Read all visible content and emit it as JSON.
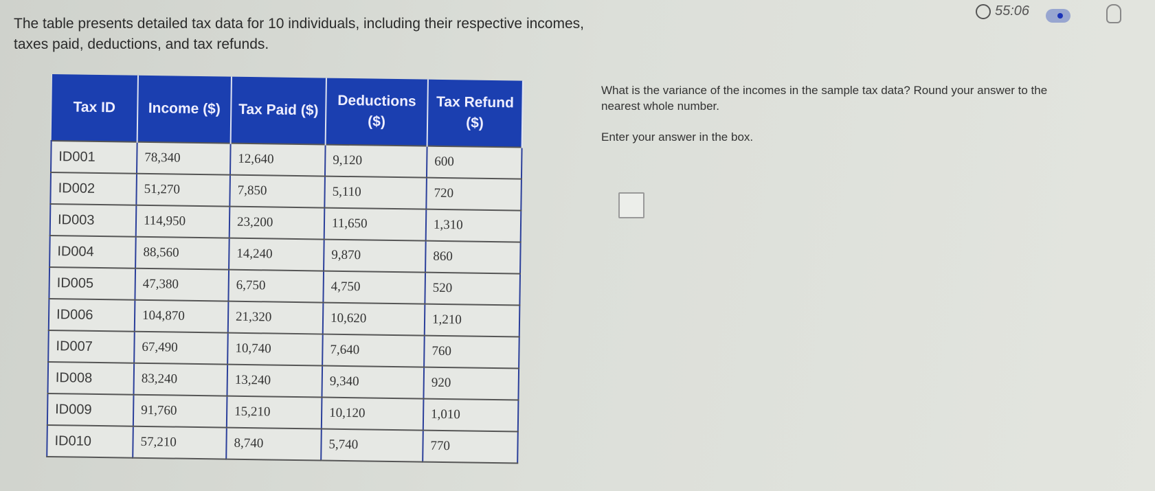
{
  "header": {
    "timer": "55:06",
    "timer_icon": "clock-icon",
    "hint_icon": "lightbulb-icon"
  },
  "intro": "The table presents detailed tax data for 10 individuals, including their respective incomes, taxes paid, deductions, and tax refunds.",
  "table": {
    "headers": [
      "Tax ID",
      "Income ($)",
      "Tax Paid ($)",
      "Deductions ($)",
      "Tax Refund ($)"
    ],
    "rows": [
      [
        "ID001",
        "78,340",
        "12,640",
        "9,120",
        "600"
      ],
      [
        "ID002",
        "51,270",
        "7,850",
        "5,110",
        "720"
      ],
      [
        "ID003",
        "114,950",
        "23,200",
        "11,650",
        "1,310"
      ],
      [
        "ID004",
        "88,560",
        "14,240",
        "9,870",
        "860"
      ],
      [
        "ID005",
        "47,380",
        "6,750",
        "4,750",
        "520"
      ],
      [
        "ID006",
        "104,870",
        "21,320",
        "10,620",
        "1,210"
      ],
      [
        "ID007",
        "67,490",
        "10,740",
        "7,640",
        "760"
      ],
      [
        "ID008",
        "83,240",
        "13,240",
        "9,340",
        "920"
      ],
      [
        "ID009",
        "91,760",
        "15,210",
        "10,120",
        "1,010"
      ],
      [
        "ID010",
        "57,210",
        "8,740",
        "5,740",
        "770"
      ]
    ]
  },
  "question": "What is the variance of the incomes in the sample tax data? Round your answer to the nearest whole number.",
  "instruction": "Enter your answer in the box.",
  "answer": {
    "value": ""
  },
  "colors": {
    "header_bg": "#1b3fb0",
    "toggle_dot": "#1a33b8"
  }
}
